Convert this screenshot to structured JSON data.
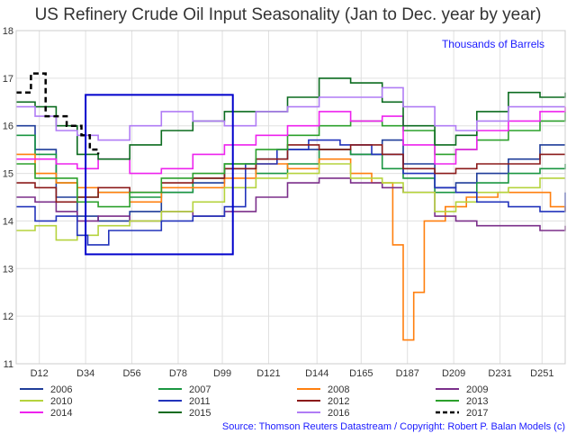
{
  "chart_data": {
    "type": "line",
    "title": "US Refinery Crude Oil Input Seasonality (Jan to Dec. year by year)",
    "unit_label": "Thousands of Barrels",
    "source": "Source: Thomson Reuters Datastream / Copyright: Robert P. Balan Models (c)",
    "xlabel": "",
    "ylabel": "",
    "xlim": [
      1,
      262
    ],
    "ylim": [
      11,
      18
    ],
    "y_ticks": [
      11,
      12,
      13,
      14,
      15,
      16,
      17,
      18
    ],
    "x_ticks": [
      {
        "value": 12,
        "label": "D12"
      },
      {
        "value": 34,
        "label": "D34"
      },
      {
        "value": 56,
        "label": "D56"
      },
      {
        "value": 78,
        "label": "D78"
      },
      {
        "value": 99,
        "label": "D99"
      },
      {
        "value": 121,
        "label": "D121"
      },
      {
        "value": 144,
        "label": "D144"
      },
      {
        "value": 165,
        "label": "D165"
      },
      {
        "value": 187,
        "label": "D187"
      },
      {
        "value": 209,
        "label": "D209"
      },
      {
        "value": 231,
        "label": "D231"
      },
      {
        "value": 251,
        "label": "D251"
      }
    ],
    "grid": true,
    "legend_position": "bottom",
    "highlight_box": {
      "x": [
        34,
        104
      ],
      "y": [
        13.3,
        16.65
      ],
      "color": "#0000cc"
    },
    "series": [
      {
        "name": "2006",
        "color": "#1f3d99",
        "dash": false,
        "points": [
          [
            1,
            16.0
          ],
          [
            10,
            15.5
          ],
          [
            20,
            14.5
          ],
          [
            30,
            14.1
          ],
          [
            40,
            14.0
          ],
          [
            55,
            14.2
          ],
          [
            70,
            14.6
          ],
          [
            85,
            14.8
          ],
          [
            100,
            15.1
          ],
          [
            115,
            15.3
          ],
          [
            130,
            15.5
          ],
          [
            145,
            15.5
          ],
          [
            160,
            15.4
          ],
          [
            175,
            15.7
          ],
          [
            185,
            15.2
          ],
          [
            200,
            14.7
          ],
          [
            210,
            14.8
          ],
          [
            220,
            15.0
          ],
          [
            235,
            15.3
          ],
          [
            250,
            15.6
          ],
          [
            262,
            15.6
          ]
        ]
      },
      {
        "name": "2007",
        "color": "#1a9641",
        "dash": false,
        "points": [
          [
            1,
            15.8
          ],
          [
            10,
            15.4
          ],
          [
            20,
            14.8
          ],
          [
            30,
            14.5
          ],
          [
            40,
            14.6
          ],
          [
            55,
            14.5
          ],
          [
            70,
            14.6
          ],
          [
            85,
            14.9
          ],
          [
            100,
            15.2
          ],
          [
            115,
            15.0
          ],
          [
            130,
            15.2
          ],
          [
            145,
            15.5
          ],
          [
            160,
            15.4
          ],
          [
            175,
            15.1
          ],
          [
            185,
            14.9
          ],
          [
            200,
            14.6
          ],
          [
            210,
            14.6
          ],
          [
            220,
            14.8
          ],
          [
            235,
            15.0
          ],
          [
            250,
            15.1
          ],
          [
            262,
            15.2
          ]
        ]
      },
      {
        "name": "2008",
        "color": "#ff7f0e",
        "dash": false,
        "points": [
          [
            1,
            15.4
          ],
          [
            10,
            15.0
          ],
          [
            20,
            14.8
          ],
          [
            30,
            14.7
          ],
          [
            40,
            14.6
          ],
          [
            55,
            14.4
          ],
          [
            70,
            14.7
          ],
          [
            85,
            14.7
          ],
          [
            100,
            14.9
          ],
          [
            115,
            15.2
          ],
          [
            130,
            15.1
          ],
          [
            145,
            15.3
          ],
          [
            160,
            15.0
          ],
          [
            170,
            14.8
          ],
          [
            178,
            14.8
          ],
          [
            180,
            13.5
          ],
          [
            183,
            13.5
          ],
          [
            185,
            11.5
          ],
          [
            188,
            11.5
          ],
          [
            190,
            12.5
          ],
          [
            193,
            12.5
          ],
          [
            195,
            14.0
          ],
          [
            205,
            14.3
          ],
          [
            215,
            14.5
          ],
          [
            230,
            14.6
          ],
          [
            245,
            14.6
          ],
          [
            255,
            14.3
          ],
          [
            262,
            14.2
          ]
        ]
      },
      {
        "name": "2009",
        "color": "#7b2f8a",
        "dash": false,
        "points": [
          [
            1,
            14.5
          ],
          [
            10,
            14.4
          ],
          [
            20,
            14.2
          ],
          [
            30,
            14.0
          ],
          [
            40,
            14.1
          ],
          [
            55,
            14.0
          ],
          [
            70,
            14.2
          ],
          [
            85,
            14.1
          ],
          [
            100,
            14.2
          ],
          [
            115,
            14.5
          ],
          [
            130,
            14.8
          ],
          [
            145,
            14.9
          ],
          [
            160,
            14.8
          ],
          [
            175,
            14.7
          ],
          [
            185,
            14.6
          ],
          [
            200,
            14.1
          ],
          [
            210,
            14.0
          ],
          [
            220,
            13.9
          ],
          [
            235,
            13.9
          ],
          [
            250,
            13.8
          ],
          [
            262,
            13.9
          ]
        ]
      },
      {
        "name": "2010",
        "color": "#b5d33d",
        "dash": false,
        "points": [
          [
            1,
            13.8
          ],
          [
            10,
            13.9
          ],
          [
            20,
            13.6
          ],
          [
            30,
            13.7
          ],
          [
            40,
            13.9
          ],
          [
            55,
            14.0
          ],
          [
            70,
            14.2
          ],
          [
            85,
            14.4
          ],
          [
            100,
            14.7
          ],
          [
            115,
            14.9
          ],
          [
            130,
            15.0
          ],
          [
            145,
            15.2
          ],
          [
            160,
            14.9
          ],
          [
            175,
            14.8
          ],
          [
            185,
            14.6
          ],
          [
            200,
            14.2
          ],
          [
            210,
            14.4
          ],
          [
            220,
            14.6
          ],
          [
            235,
            14.7
          ],
          [
            250,
            14.9
          ],
          [
            262,
            14.9
          ]
        ]
      },
      {
        "name": "2011",
        "color": "#2233bb",
        "dash": false,
        "points": [
          [
            1,
            14.3
          ],
          [
            10,
            14.0
          ],
          [
            20,
            14.1
          ],
          [
            30,
            13.7
          ],
          [
            35,
            13.5
          ],
          [
            45,
            13.8
          ],
          [
            55,
            13.8
          ],
          [
            70,
            14.0
          ],
          [
            85,
            14.1
          ],
          [
            100,
            14.3
          ],
          [
            110,
            15.2
          ],
          [
            125,
            15.5
          ],
          [
            140,
            15.7
          ],
          [
            155,
            15.6
          ],
          [
            170,
            15.4
          ],
          [
            185,
            15.0
          ],
          [
            200,
            14.7
          ],
          [
            210,
            14.6
          ],
          [
            220,
            14.4
          ],
          [
            235,
            14.3
          ],
          [
            250,
            14.2
          ],
          [
            262,
            14.6
          ]
        ]
      },
      {
        "name": "2012",
        "color": "#8b1a1a",
        "dash": false,
        "points": [
          [
            1,
            14.8
          ],
          [
            10,
            14.7
          ],
          [
            20,
            14.4
          ],
          [
            30,
            14.5
          ],
          [
            40,
            14.7
          ],
          [
            55,
            14.6
          ],
          [
            70,
            14.8
          ],
          [
            85,
            14.9
          ],
          [
            100,
            15.1
          ],
          [
            115,
            15.3
          ],
          [
            130,
            15.6
          ],
          [
            145,
            15.5
          ],
          [
            160,
            15.6
          ],
          [
            175,
            15.4
          ],
          [
            185,
            15.1
          ],
          [
            200,
            15.0
          ],
          [
            210,
            15.1
          ],
          [
            220,
            15.2
          ],
          [
            235,
            15.2
          ],
          [
            250,
            15.4
          ],
          [
            262,
            15.4
          ]
        ]
      },
      {
        "name": "2013",
        "color": "#2ca02c",
        "dash": false,
        "points": [
          [
            1,
            15.2
          ],
          [
            10,
            14.9
          ],
          [
            20,
            14.9
          ],
          [
            30,
            14.4
          ],
          [
            40,
            14.3
          ],
          [
            55,
            14.6
          ],
          [
            70,
            14.9
          ],
          [
            85,
            15.0
          ],
          [
            100,
            15.2
          ],
          [
            115,
            15.5
          ],
          [
            130,
            15.8
          ],
          [
            145,
            16.0
          ],
          [
            160,
            16.1
          ],
          [
            175,
            16.0
          ],
          [
            185,
            15.9
          ],
          [
            200,
            15.4
          ],
          [
            210,
            15.5
          ],
          [
            220,
            15.7
          ],
          [
            235,
            15.9
          ],
          [
            250,
            16.1
          ],
          [
            262,
            16.3
          ]
        ]
      },
      {
        "name": "2014",
        "color": "#ee22ee",
        "dash": false,
        "points": [
          [
            1,
            15.3
          ],
          [
            10,
            15.3
          ],
          [
            20,
            15.2
          ],
          [
            30,
            15.1
          ],
          [
            40,
            15.3
          ],
          [
            55,
            15.0
          ],
          [
            70,
            15.1
          ],
          [
            85,
            15.4
          ],
          [
            100,
            15.6
          ],
          [
            115,
            15.8
          ],
          [
            130,
            16.0
          ],
          [
            145,
            16.3
          ],
          [
            160,
            16.1
          ],
          [
            175,
            16.2
          ],
          [
            185,
            15.6
          ],
          [
            200,
            15.2
          ],
          [
            210,
            15.5
          ],
          [
            220,
            15.9
          ],
          [
            235,
            16.1
          ],
          [
            250,
            16.3
          ],
          [
            262,
            16.4
          ]
        ]
      },
      {
        "name": "2015",
        "color": "#0b6b1f",
        "dash": false,
        "points": [
          [
            1,
            16.5
          ],
          [
            10,
            16.4
          ],
          [
            20,
            16.0
          ],
          [
            30,
            15.4
          ],
          [
            40,
            15.3
          ],
          [
            55,
            15.6
          ],
          [
            70,
            15.9
          ],
          [
            85,
            16.1
          ],
          [
            100,
            16.3
          ],
          [
            115,
            16.3
          ],
          [
            130,
            16.6
          ],
          [
            145,
            17.0
          ],
          [
            160,
            16.9
          ],
          [
            175,
            16.5
          ],
          [
            185,
            16.0
          ],
          [
            200,
            15.6
          ],
          [
            210,
            15.8
          ],
          [
            220,
            16.3
          ],
          [
            235,
            16.7
          ],
          [
            250,
            16.6
          ],
          [
            262,
            16.7
          ]
        ]
      },
      {
        "name": "2016",
        "color": "#b07cf5",
        "dash": false,
        "points": [
          [
            1,
            16.4
          ],
          [
            10,
            16.2
          ],
          [
            20,
            15.9
          ],
          [
            30,
            15.8
          ],
          [
            40,
            15.7
          ],
          [
            55,
            16.0
          ],
          [
            70,
            16.3
          ],
          [
            85,
            16.1
          ],
          [
            100,
            16.0
          ],
          [
            115,
            16.3
          ],
          [
            130,
            16.4
          ],
          [
            145,
            16.6
          ],
          [
            160,
            16.6
          ],
          [
            175,
            16.8
          ],
          [
            185,
            16.4
          ],
          [
            200,
            16.0
          ],
          [
            210,
            15.9
          ],
          [
            220,
            16.1
          ],
          [
            235,
            16.4
          ],
          [
            250,
            16.4
          ],
          [
            262,
            16.4
          ]
        ]
      },
      {
        "name": "2017",
        "color": "#000000",
        "dash": true,
        "points": [
          [
            1,
            16.7
          ],
          [
            5,
            16.7
          ],
          [
            8,
            17.1
          ],
          [
            12,
            17.1
          ],
          [
            15,
            16.2
          ],
          [
            25,
            16.0
          ],
          [
            32,
            15.8
          ],
          [
            36,
            15.5
          ],
          [
            40,
            15.4
          ]
        ]
      }
    ]
  }
}
